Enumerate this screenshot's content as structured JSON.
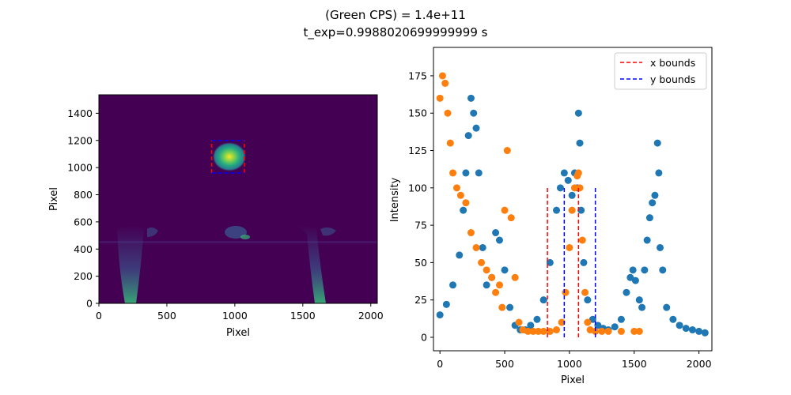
{
  "figure": {
    "title_line1": "(Green CPS) = 1.4e+11",
    "title_line2": "t_exp=0.9988020699999999 s"
  },
  "colors": {
    "blue_series": "#1f77b4",
    "orange_series": "#ff7f0e",
    "x_bounds": "#ff0000",
    "y_bounds": "#0000ff",
    "image_background": "#440154",
    "image_hot": "#fde725"
  },
  "chart_data": [
    {
      "type": "heatmap",
      "colormap": "viridis",
      "xlabel": "Pixel",
      "ylabel": "Pixel",
      "xlim": [
        0,
        2048
      ],
      "ylim": [
        0,
        1536
      ],
      "xticks": [
        0,
        500,
        1000,
        1500,
        2000
      ],
      "yticks": [
        0,
        200,
        400,
        600,
        800,
        1000,
        1200,
        1400
      ],
      "roi_box": {
        "x0": 830,
        "x1": 1070,
        "y0": 960,
        "y1": 1200
      },
      "hotspot": {
        "x": 960,
        "y": 1080
      }
    },
    {
      "type": "scatter",
      "xlabel": "Pixel",
      "ylabel": "Intensity",
      "xlim": [
        -50,
        2100
      ],
      "ylim": [
        -9,
        194
      ],
      "xticks": [
        0,
        500,
        1000,
        1500,
        2000
      ],
      "yticks": [
        0,
        25,
        50,
        75,
        100,
        125,
        150,
        175
      ],
      "legend_position": "top-right",
      "legend": [
        "x bounds",
        "y bounds"
      ],
      "series": [
        {
          "color": "#1f77b4",
          "x": [
            0,
            50,
            100,
            150,
            180,
            200,
            220,
            240,
            260,
            280,
            300,
            330,
            360,
            400,
            430,
            460,
            500,
            540,
            580,
            620,
            660,
            700,
            750,
            800,
            850,
            900,
            930,
            960,
            990,
            1020,
            1040,
            1060,
            1070,
            1080,
            1090,
            1110,
            1140,
            1180,
            1220,
            1260,
            1300,
            1350,
            1400,
            1440,
            1470,
            1490,
            1510,
            1540,
            1560,
            1580,
            1600,
            1620,
            1640,
            1660,
            1680,
            1690,
            1700,
            1720,
            1750,
            1800,
            1850,
            1900,
            1950,
            2000,
            2047
          ],
          "y": [
            15,
            22,
            35,
            55,
            85,
            110,
            135,
            160,
            150,
            140,
            110,
            60,
            35,
            40,
            70,
            65,
            45,
            20,
            8,
            5,
            5,
            8,
            12,
            25,
            50,
            85,
            100,
            110,
            105,
            95,
            110,
            100,
            150,
            130,
            85,
            50,
            25,
            12,
            8,
            6,
            5,
            7,
            12,
            30,
            40,
            45,
            38,
            25,
            20,
            45,
            65,
            80,
            90,
            95,
            130,
            110,
            60,
            45,
            20,
            12,
            8,
            6,
            5,
            4,
            3
          ]
        },
        {
          "color": "#ff7f0e",
          "x": [
            0,
            20,
            40,
            60,
            80,
            100,
            130,
            160,
            200,
            240,
            280,
            320,
            360,
            400,
            430,
            460,
            480,
            500,
            520,
            550,
            580,
            610,
            640,
            680,
            720,
            760,
            800,
            850,
            900,
            940,
            970,
            1000,
            1020,
            1040,
            1060,
            1070,
            1080,
            1100,
            1120,
            1140,
            1160,
            1200,
            1250,
            1300,
            1400,
            1500,
            1540
          ],
          "y": [
            160,
            175,
            170,
            150,
            130,
            110,
            100,
            95,
            90,
            70,
            60,
            50,
            45,
            40,
            30,
            35,
            20,
            85,
            125,
            80,
            40,
            10,
            5,
            4,
            4,
            4,
            4,
            4,
            5,
            10,
            30,
            60,
            85,
            100,
            108,
            110,
            100,
            65,
            30,
            10,
            5,
            4,
            4,
            4,
            4,
            4,
            4
          ]
        },
        {
          "name": "x bounds",
          "color": "#ff0000",
          "style": "dashed",
          "lines": [
            {
              "x": 830,
              "y0": 0,
              "y1": 100
            },
            {
              "x": 1070,
              "y0": 0,
              "y1": 100
            }
          ]
        },
        {
          "name": "y bounds",
          "color": "#0000ff",
          "style": "dashed",
          "lines": [
            {
              "x": 960,
              "y0": 0,
              "y1": 100
            },
            {
              "x": 1200,
              "y0": 0,
              "y1": 100
            }
          ]
        }
      ]
    }
  ]
}
